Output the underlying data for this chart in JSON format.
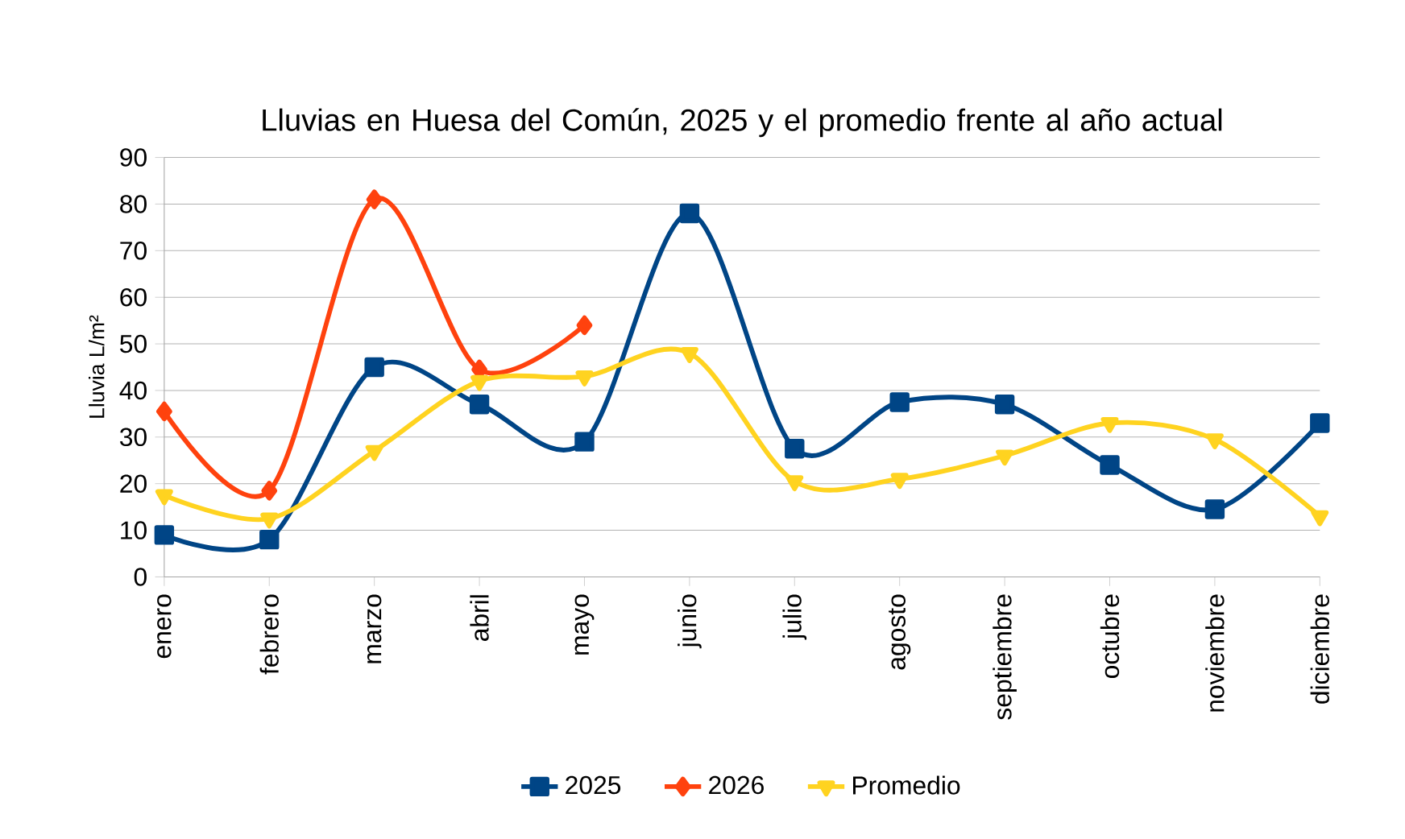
{
  "chart_data": {
    "type": "line",
    "title": "Lluvias en Huesa del Común, 2025 y el promedio frente al año actual",
    "ylabel": "Lluvia L/m²",
    "categories": [
      "enero",
      "febrero",
      "marzo",
      "abril",
      "mayo",
      "junio",
      "julio",
      "agosto",
      "septiembre",
      "octubre",
      "noviembre",
      "diciembre"
    ],
    "series": [
      {
        "name": "2025",
        "color": "#004586",
        "marker": "square",
        "values": [
          9,
          8,
          45,
          37,
          29,
          78,
          27.5,
          37.5,
          37,
          24,
          14.5,
          33
        ]
      },
      {
        "name": "2026",
        "color": "#ff420e",
        "marker": "diamond",
        "values": [
          35.5,
          18.5,
          81,
          44.5,
          54,
          null,
          null,
          null,
          null,
          null,
          null,
          null
        ]
      },
      {
        "name": "Promedio",
        "color": "#ffd320",
        "marker": "triangle",
        "values": [
          17.5,
          12.5,
          27,
          42,
          43,
          48,
          20.5,
          21,
          26,
          33,
          29.5,
          13
        ]
      }
    ],
    "ylim": [
      0,
      90
    ],
    "yticks": [
      0,
      10,
      20,
      30,
      40,
      50,
      60,
      70,
      80,
      90
    ],
    "grid": "y",
    "legend": "bottom"
  }
}
